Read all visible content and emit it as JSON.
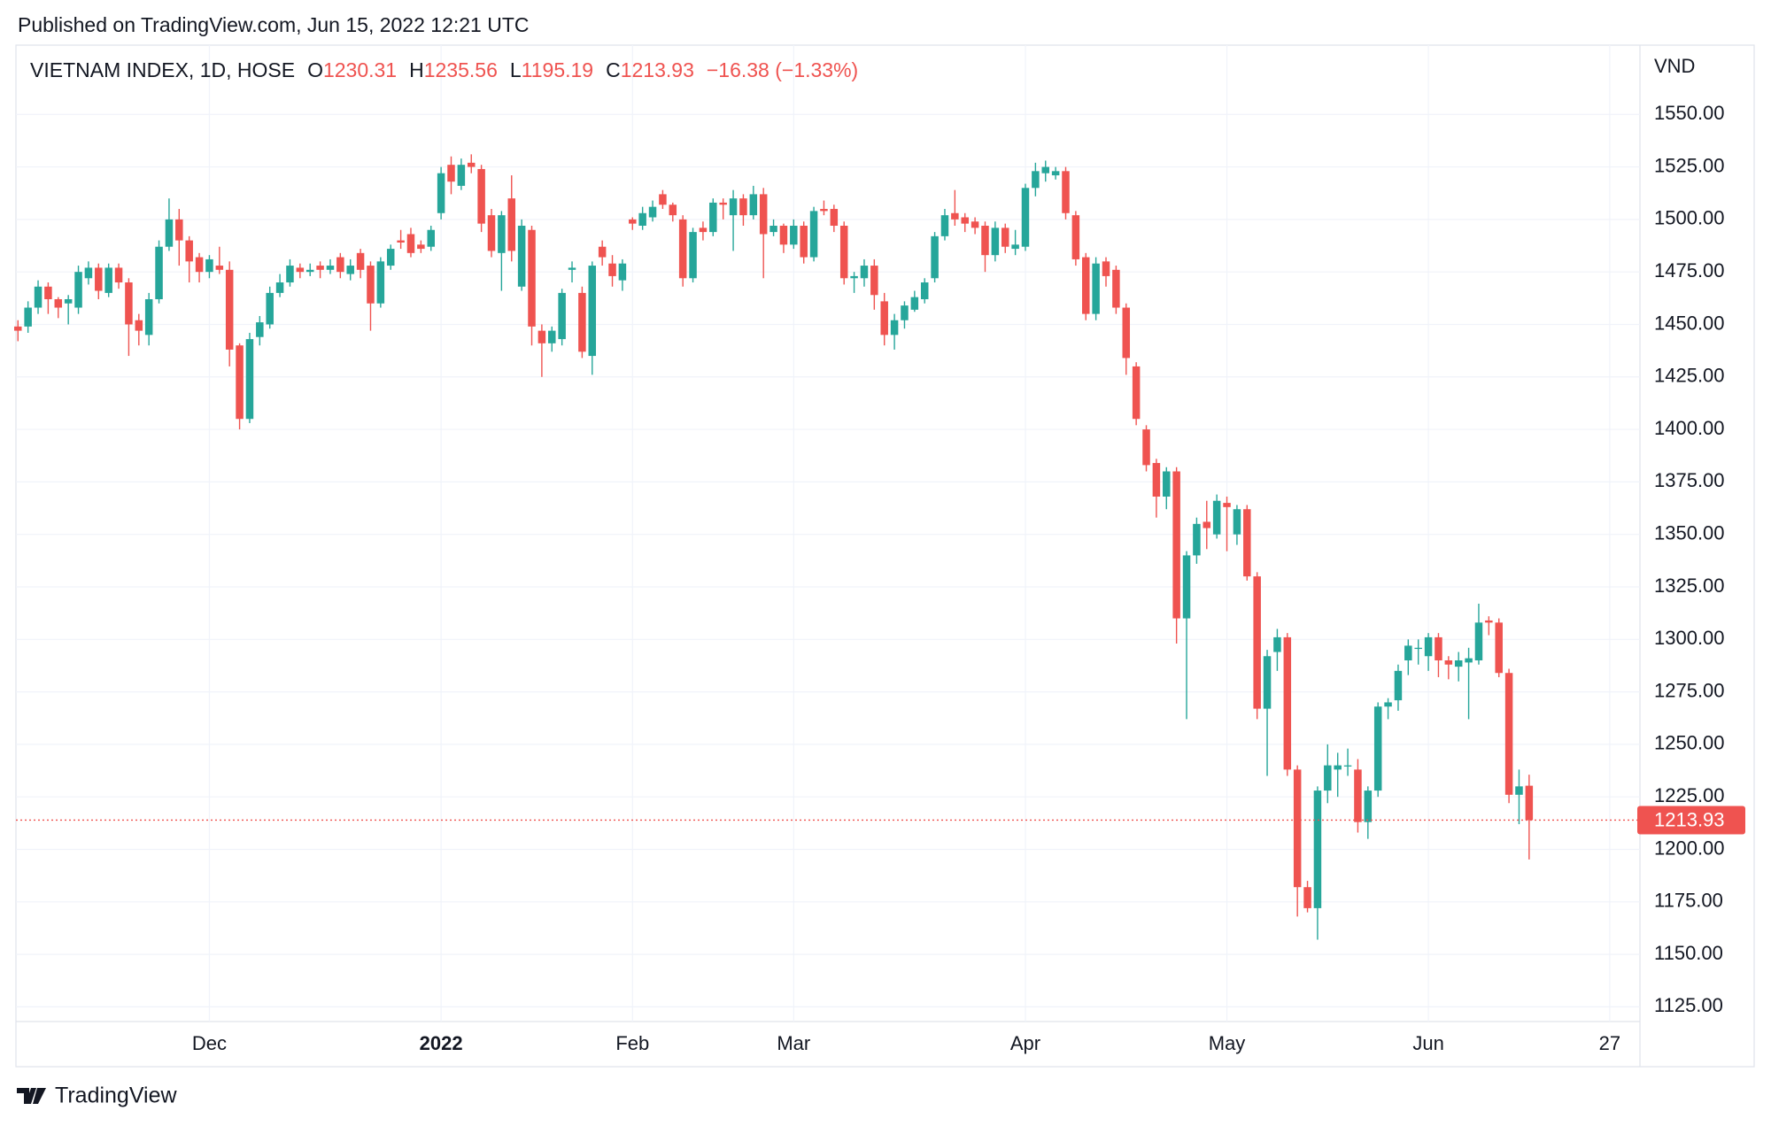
{
  "published": "Published on TradingView.com, Jun 15, 2022 12:21 UTC",
  "brand": "TradingView",
  "chart_data": {
    "type": "candlestick",
    "title": "VIETNAM INDEX, 1D, HOSE",
    "ohlc_labels": [
      "O",
      "H",
      "L",
      "C"
    ],
    "change_label": "−16.38 (−1.33%)",
    "y_axis_label": "VND",
    "up_color": "#26a69a",
    "down_color": "#ef5350",
    "grid": true,
    "xlim": [
      -0.2,
      161
    ],
    "xticks": [
      {
        "value": 19,
        "label": "Dec"
      },
      {
        "value": 42,
        "label": "2022"
      },
      {
        "value": 61,
        "label": "Feb"
      },
      {
        "value": 77,
        "label": "Mar"
      },
      {
        "value": 100,
        "label": "Apr"
      },
      {
        "value": 120,
        "label": "May"
      },
      {
        "value": 140,
        "label": "Jun"
      },
      {
        "value": 158,
        "label": "27"
      }
    ],
    "ylim": [
      1118,
      1583
    ],
    "yticks": [
      {
        "value": 1125,
        "label": "1125.00"
      },
      {
        "value": 1150,
        "label": "1150.00"
      },
      {
        "value": 1175,
        "label": "1175.00"
      },
      {
        "value": 1200,
        "label": "1200.00"
      },
      {
        "value": 1225,
        "label": "1225.00"
      },
      {
        "value": 1250,
        "label": "1250.00"
      },
      {
        "value": 1275,
        "label": "1275.00"
      },
      {
        "value": 1300,
        "label": "1300.00"
      },
      {
        "value": 1325,
        "label": "1325.00"
      },
      {
        "value": 1350,
        "label": "1350.00"
      },
      {
        "value": 1375,
        "label": "1375.00"
      },
      {
        "value": 1400,
        "label": "1400.00"
      },
      {
        "value": 1425,
        "label": "1425.00"
      },
      {
        "value": 1450,
        "label": "1450.00"
      },
      {
        "value": 1475,
        "label": "1475.00"
      },
      {
        "value": 1500,
        "label": "1500.00"
      },
      {
        "value": 1525,
        "label": "1525.00"
      },
      {
        "value": 1550,
        "label": "1550.00"
      }
    ],
    "open": [
      1449,
      1449,
      1458,
      1468,
      1462,
      1460,
      1458,
      1472,
      1477,
      1465,
      1477,
      1470,
      1452,
      1445,
      1462,
      1487,
      1500,
      1490,
      1482,
      1475,
      1478,
      1476,
      1440,
      1405,
      1444,
      1450,
      1465,
      1470,
      1477,
      1475,
      1478,
      1476,
      1482,
      1474,
      1484,
      1478,
      1460,
      1478,
      1490,
      1493,
      1488,
      1487,
      1503,
      1526,
      1516,
      1527,
      1524,
      1502,
      1484,
      1510,
      1468,
      1495,
      1447,
      1441,
      1443,
      1476,
      1465,
      1435,
      1487,
      1479,
      1471,
      1500,
      1497,
      1501,
      1512,
      1507,
      1500,
      1472,
      1496,
      1494,
      1508,
      1502,
      1510,
      1502,
      1512,
      1494,
      1497,
      1488,
      1497,
      1482,
      1505,
      1505,
      1497,
      1472,
      1472,
      1478,
      1461,
      1445,
      1452,
      1457,
      1462,
      1472,
      1492,
      1503,
      1501,
      1499,
      1497,
      1483,
      1496,
      1486,
      1487,
      1515,
      1522,
      1521,
      1523,
      1502,
      1482,
      1455,
      1480,
      1476,
      1458,
      1430,
      1400,
      1384,
      1368,
      1380,
      1310,
      1340,
      1356,
      1350,
      1365,
      1350,
      1362,
      1330,
      1267,
      1294,
      1301,
      1238,
      1182,
      1172,
      1228,
      1238,
      1240,
      1238,
      1213,
      1228,
      1268,
      1271,
      1290,
      1296,
      1292,
      1301,
      1290,
      1287,
      1289,
      1290,
      1309,
      1308,
      1284,
      1226,
      1230.31
    ],
    "high": [
      1452,
      1461,
      1471,
      1470,
      1463,
      1464,
      1478,
      1480,
      1479,
      1479,
      1479,
      1472,
      1455,
      1465,
      1490,
      1510,
      1505,
      1492,
      1484,
      1483,
      1487,
      1480,
      1441,
      1446,
      1454,
      1468,
      1474,
      1481,
      1479,
      1479,
      1480,
      1481,
      1484,
      1481,
      1486,
      1480,
      1482,
      1488,
      1495,
      1496,
      1490,
      1497,
      1525,
      1530,
      1529,
      1531,
      1526,
      1505,
      1504,
      1521,
      1500,
      1497,
      1450,
      1449,
      1467,
      1480,
      1468,
      1480,
      1490,
      1483,
      1481,
      1501,
      1506,
      1509,
      1514,
      1508,
      1502,
      1496,
      1499,
      1510,
      1510,
      1514,
      1512,
      1516,
      1515,
      1500,
      1498,
      1500,
      1499,
      1506,
      1509,
      1507,
      1499,
      1475,
      1481,
      1481,
      1465,
      1455,
      1461,
      1466,
      1472,
      1494,
      1505,
      1514,
      1503,
      1501,
      1499,
      1499,
      1498,
      1495,
      1517,
      1527,
      1528,
      1525,
      1525,
      1504,
      1484,
      1482,
      1482,
      1478,
      1460,
      1432,
      1402,
      1386,
      1382,
      1382,
      1342,
      1358,
      1366,
      1369,
      1368,
      1364,
      1364,
      1332,
      1295,
      1305,
      1303,
      1240,
      1185,
      1230,
      1250,
      1246,
      1248,
      1243,
      1230,
      1270,
      1272,
      1288,
      1300,
      1300,
      1303,
      1303,
      1292,
      1294,
      1296,
      1317,
      1311,
      1310,
      1286,
      1238,
      1235.56
    ],
    "low": [
      1442,
      1446,
      1455,
      1455,
      1453,
      1450,
      1455,
      1469,
      1462,
      1463,
      1467,
      1435,
      1440,
      1440,
      1460,
      1485,
      1478,
      1470,
      1470,
      1472,
      1474,
      1430,
      1400,
      1403,
      1440,
      1448,
      1463,
      1468,
      1472,
      1473,
      1472,
      1474,
      1472,
      1471,
      1472,
      1447,
      1458,
      1476,
      1486,
      1482,
      1484,
      1485,
      1500,
      1512,
      1514,
      1522,
      1494,
      1482,
      1466,
      1480,
      1466,
      1440,
      1425,
      1437,
      1440,
      1470,
      1434,
      1426,
      1478,
      1468,
      1466,
      1495,
      1495,
      1499,
      1505,
      1499,
      1468,
      1470,
      1490,
      1492,
      1500,
      1485,
      1497,
      1500,
      1472,
      1492,
      1484,
      1486,
      1479,
      1480,
      1502,
      1494,
      1469,
      1465,
      1468,
      1457,
      1440,
      1438,
      1448,
      1456,
      1460,
      1470,
      1490,
      1497,
      1494,
      1493,
      1475,
      1480,
      1484,
      1483,
      1485,
      1511,
      1518,
      1519,
      1500,
      1478,
      1452,
      1452,
      1468,
      1455,
      1426,
      1402,
      1380,
      1358,
      1362,
      1298,
      1262,
      1336,
      1343,
      1348,
      1342,
      1345,
      1328,
      1262,
      1235,
      1285,
      1235,
      1168,
      1170,
      1157,
      1222,
      1225,
      1235,
      1208,
      1205,
      1225,
      1262,
      1266,
      1283,
      1288,
      1285,
      1282,
      1281,
      1280,
      1262,
      1288,
      1302,
      1282,
      1222,
      1212,
      1195.19
    ],
    "close": [
      1447,
      1458,
      1468,
      1462,
      1458,
      1462,
      1475,
      1477,
      1466,
      1477,
      1470,
      1450,
      1447,
      1462,
      1487,
      1500,
      1490,
      1480,
      1475,
      1481,
      1476,
      1438,
      1405,
      1443,
      1451,
      1465,
      1470,
      1478,
      1475,
      1476,
      1476,
      1478,
      1475,
      1478,
      1476,
      1460,
      1480,
      1486,
      1489,
      1484,
      1486,
      1495,
      1522,
      1518,
      1526,
      1525,
      1498,
      1485,
      1502,
      1485,
      1497,
      1449,
      1441,
      1447,
      1465,
      1477,
      1437,
      1478,
      1482,
      1473,
      1479,
      1498,
      1503,
      1506,
      1507,
      1502,
      1472,
      1494,
      1494,
      1508,
      1507,
      1510,
      1502,
      1512,
      1493,
      1497,
      1488,
      1497,
      1482,
      1504,
      1504,
      1497,
      1472,
      1473,
      1478,
      1464,
      1445,
      1452,
      1459,
      1463,
      1470,
      1492,
      1502,
      1500,
      1498,
      1496,
      1483,
      1496,
      1487,
      1488,
      1515,
      1523,
      1525,
      1523,
      1503,
      1481,
      1455,
      1479,
      1473,
      1458,
      1434,
      1405,
      1383,
      1368,
      1380,
      1310,
      1340,
      1355,
      1353,
      1366,
      1363,
      1362,
      1330,
      1267,
      1292,
      1301,
      1238,
      1182,
      1172,
      1228,
      1240,
      1240,
      1240,
      1213,
      1228,
      1268,
      1270,
      1285,
      1297,
      1296,
      1301,
      1290,
      1288,
      1290,
      1291,
      1308,
      1308,
      1284,
      1226,
      1230,
      1213.93
    ]
  }
}
